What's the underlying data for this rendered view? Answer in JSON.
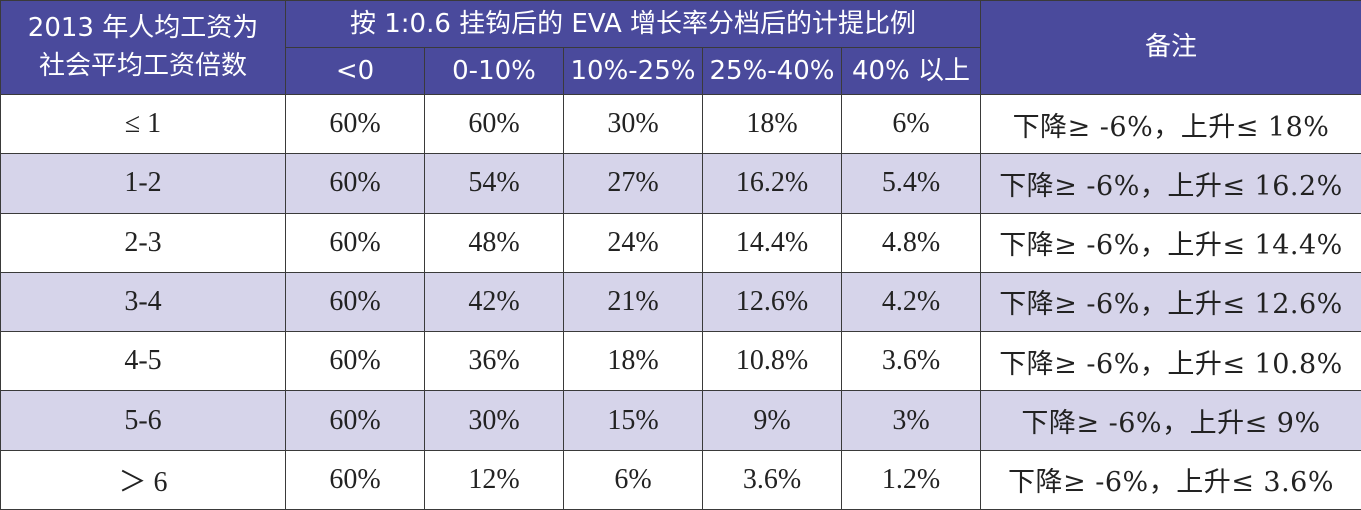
{
  "header": {
    "first_col_line1": "2013 年人均工资为",
    "first_col_line2": "社会平均工资倍数",
    "group_title": "按 1:0.6 挂钩后的 EVA 增长率分档后的计提比例",
    "note_title": "备注",
    "bands": [
      "<0",
      "0-10%",
      "10%-25%",
      "25%-40%",
      "40% 以上"
    ]
  },
  "rows": [
    {
      "ratio": "≤ 1",
      "values": [
        "60%",
        "60%",
        "30%",
        "18%",
        "6%"
      ],
      "note": "下降≥ -6%，上升≤ 18%"
    },
    {
      "ratio": "1-2",
      "values": [
        "60%",
        "54%",
        "27%",
        "16.2%",
        "5.4%"
      ],
      "note": "下降≥ -6%，上升≤ 16.2%"
    },
    {
      "ratio": "2-3",
      "values": [
        "60%",
        "48%",
        "24%",
        "14.4%",
        "4.8%"
      ],
      "note": "下降≥ -6%，上升≤ 14.4%"
    },
    {
      "ratio": "3-4",
      "values": [
        "60%",
        "42%",
        "21%",
        "12.6%",
        "4.2%"
      ],
      "note": "下降≥ -6%，上升≤ 12.6%"
    },
    {
      "ratio": "4-5",
      "values": [
        "60%",
        "36%",
        "18%",
        "10.8%",
        "3.6%"
      ],
      "note": "下降≥ -6%，上升≤ 10.8%"
    },
    {
      "ratio": "5-6",
      "values": [
        "60%",
        "30%",
        "15%",
        "9%",
        "3%"
      ],
      "note": "下降≥ -6%，上升≤ 9%"
    },
    {
      "ratio": "＞ 6",
      "values": [
        "60%",
        "12%",
        "6%",
        "3.6%",
        "1.2%"
      ],
      "note": "下降≥ -6%，上升≤ 3.6%"
    }
  ],
  "colors": {
    "header_bg": "#4a4a9c",
    "header_text": "#ffffff",
    "alt_row_bg": "#d6d4ea",
    "border": "#3a3a3a"
  }
}
